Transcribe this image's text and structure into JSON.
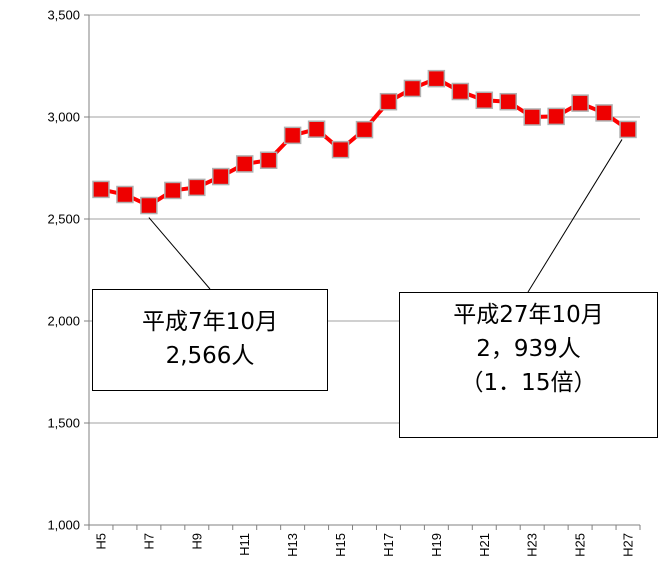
{
  "chart_data": {
    "type": "line",
    "x": [
      "H5",
      "H6",
      "H7",
      "H8",
      "H9",
      "H10",
      "H11",
      "H12",
      "H13",
      "H14",
      "H15",
      "H16",
      "H17",
      "H18",
      "H19",
      "H20",
      "H21",
      "H22",
      "H23",
      "H24",
      "H25",
      "H26",
      "H27"
    ],
    "x_tick_labels": [
      "H5",
      "H7",
      "H9",
      "H11",
      "H13",
      "H15",
      "H17",
      "H19",
      "H21",
      "H23",
      "H25",
      "H27"
    ],
    "series": [
      {
        "values": [
          2645,
          2620,
          2566,
          2640,
          2655,
          2708,
          2770,
          2788,
          2910,
          2940,
          2840,
          2938,
          3075,
          3140,
          3188,
          3125,
          3082,
          3075,
          3000,
          3003,
          3068,
          3020,
          2939
        ],
        "color": "#ff0000",
        "marker": "square"
      }
    ],
    "ylim": [
      1000,
      3500
    ],
    "y_ticks": [
      "1,000",
      "1,500",
      "2,000",
      "2,500",
      "3,000",
      "3,500"
    ],
    "y_tick_values": [
      1000,
      1500,
      2000,
      2500,
      3000,
      3500
    ],
    "grid": "horizontal",
    "annotations": [
      {
        "point_index": 2,
        "lines": [
          "平成7年10月",
          "2,566人"
        ]
      },
      {
        "point_index": 22,
        "lines": [
          "平成27年10月",
          "2，939人",
          "（1．15倍）"
        ]
      }
    ]
  },
  "colors": {
    "line": "#ff0000",
    "marker_fill": "#ee0000",
    "marker_edge": "#b0b0b0",
    "grid": "#a0a0a0",
    "axis": "#808080"
  }
}
